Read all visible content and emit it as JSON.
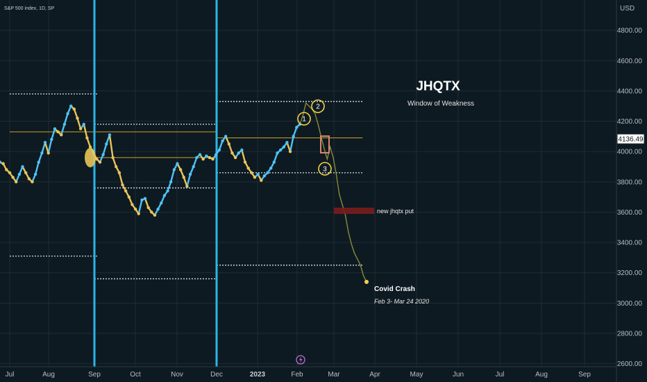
{
  "header": {
    "symbol_text": "S&P 500 index, 1D, SP"
  },
  "axis": {
    "currency": "USD",
    "last_price": "4136.49"
  },
  "annotations": {
    "title": "JHQTX",
    "subtitle": "Window of Weakness",
    "put_label": "new jhqtx put",
    "crash_title": "Covid Crash",
    "crash_dates": "Feb 3- Mar 24 2020",
    "markers": [
      "1",
      "2",
      "3"
    ]
  },
  "colors": {
    "background": "#0e1a22",
    "grid": "#1d2c35",
    "vertical_line": "#29b6e8",
    "level_line": "#c9a227",
    "price_up": "#4fc3f7",
    "price_down": "#e8c55a",
    "projection": "#8a8a3a",
    "put_box": "#7a1c1c",
    "marker": "#f0d24a"
  },
  "chart_data": {
    "type": "line",
    "title": "JHQTX",
    "subtitle": "Window of Weakness",
    "x_ticks": [
      "Jul",
      "Aug",
      "Sep",
      "Oct",
      "Nov",
      "Dec",
      "2023",
      "Feb",
      "Mar",
      "Apr",
      "May",
      "Jun",
      "Jul",
      "Aug",
      "Sep"
    ],
    "y_ticks": [
      2600,
      2800,
      3000,
      3200,
      3400,
      3600,
      3800,
      4000,
      4200,
      4400,
      4600,
      4800
    ],
    "ylim": [
      2580,
      5000
    ],
    "last_value": 4136.49,
    "series": [
      {
        "values": [
          3930,
          3920,
          3880,
          3860,
          3830,
          3800,
          3850,
          3900,
          3860,
          3820,
          3800,
          3850,
          3930,
          3990,
          4060,
          3990,
          4080,
          4150,
          4130,
          4110,
          4180,
          4250,
          4300,
          4280,
          4220,
          4150,
          4180,
          4090,
          4030,
          3990,
          3950,
          3930,
          3980,
          4050,
          4110,
          3960,
          3900,
          3860,
          3780,
          3740,
          3700,
          3650,
          3620,
          3590,
          3680,
          3690,
          3630,
          3600,
          3580,
          3620,
          3660,
          3710,
          3740,
          3800,
          3880,
          3920,
          3880,
          3830,
          3770,
          3850,
          3900,
          3960,
          3980,
          3950,
          3970,
          3960,
          3950,
          3980,
          4010,
          4070,
          4100,
          4050,
          3990,
          3960,
          3990,
          4010,
          3930,
          3890,
          3860,
          3830,
          3850,
          3810,
          3840,
          3860,
          3890,
          3930,
          3990,
          4010,
          4030,
          4060,
          4000,
          4100,
          4160,
          4180
        ]
      }
    ],
    "projection_values": [
      4180,
      4240,
      4320,
      4300,
      4280,
      4250,
      4180,
      4100,
      4020,
      3950,
      4030,
      3960,
      3850,
      3720,
      3650,
      3580,
      3470,
      3390,
      3330,
      3290,
      3250,
      3180,
      3140
    ],
    "horizontal_levels": [
      4380,
      4180,
      4330,
      4130,
      4090,
      3960,
      3860,
      3760,
      3310,
      3250,
      3160
    ],
    "vertical_markers": [
      "Sep",
      "Dec"
    ]
  }
}
